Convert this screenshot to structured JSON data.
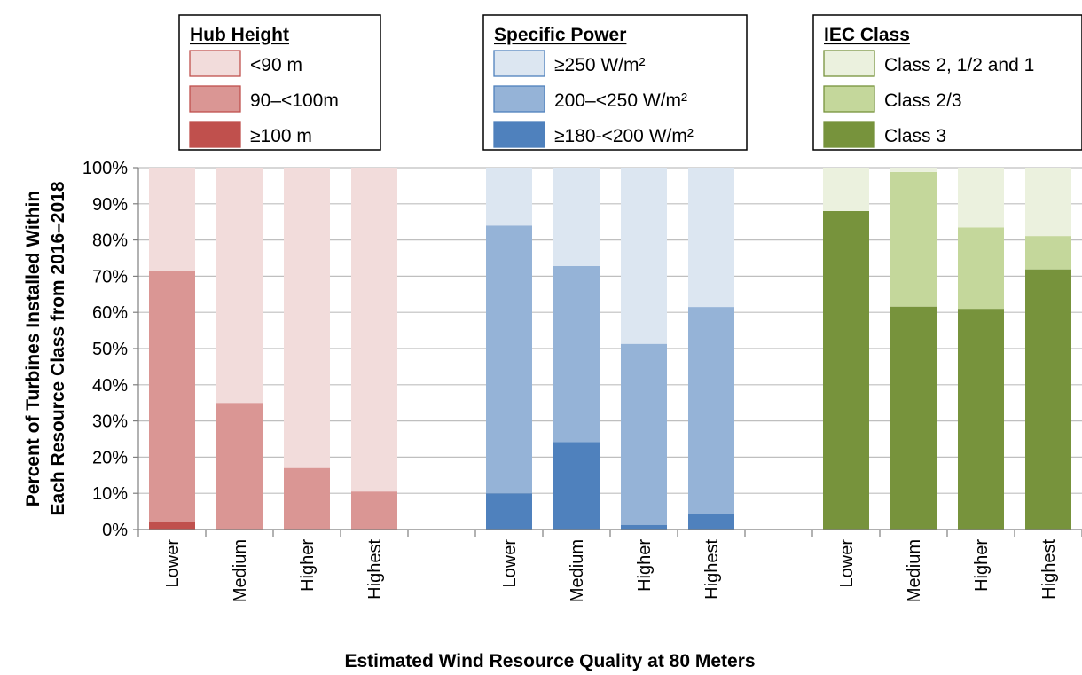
{
  "chart_data": {
    "type": "bar",
    "stacked": true,
    "ylabel_line1": "Percent of Turbines Installed Within",
    "ylabel_line2": "Each Resource Class from 2016–2018",
    "xlabel": "Estimated Wind Resource Quality at 80 Meters",
    "ylim": [
      0,
      100
    ],
    "yticks": [
      "0%",
      "10%",
      "20%",
      "30%",
      "40%",
      "50%",
      "60%",
      "70%",
      "80%",
      "90%",
      "100%"
    ],
    "categories": [
      "Lower",
      "Medium",
      "Higher",
      "Highest"
    ],
    "grid": true,
    "groups": [
      {
        "legend_title": "Hub Height",
        "legend_placement": "top-left",
        "series": [
          {
            "name": "<90 m",
            "color": "#f2dcdb",
            "values": [
              28.6,
              65.0,
              83.0,
              89.5
            ]
          },
          {
            "name": "90–<100m",
            "color": "#da9694",
            "values": [
              69.2,
              35.0,
              17.0,
              10.5
            ]
          },
          {
            "name": "≥100 m",
            "color": "#c0504d",
            "values": [
              2.2,
              0.0,
              0.0,
              0.0
            ]
          }
        ]
      },
      {
        "legend_title": "Specific Power",
        "legend_placement": "top-center",
        "series": [
          {
            "name": "≥250 W/m²",
            "color": "#dce6f1",
            "values": [
              16.0,
              27.2,
              48.7,
              38.5
            ]
          },
          {
            "name": "200–<250 W/m²",
            "color": "#95b3d7",
            "values": [
              74.0,
              48.6,
              50.0,
              57.3
            ]
          },
          {
            "name": "≥180-<200 W/m²",
            "color": "#4f81bd",
            "values": [
              10.0,
              24.2,
              1.3,
              4.2
            ]
          }
        ]
      },
      {
        "legend_title": "IEC Class",
        "legend_placement": "top-right",
        "series": [
          {
            "name": "Class 2, 1/2 and 1",
            "color": "#ebf1de",
            "values": [
              12.0,
              1.2,
              16.5,
              18.9
            ]
          },
          {
            "name": "Class 2/3",
            "color": "#c4d79b",
            "values": [
              0.0,
              37.2,
              22.5,
              9.2
            ]
          },
          {
            "name": "Class 3",
            "color": "#77933c",
            "values": [
              88.0,
              61.6,
              61.0,
              71.9
            ]
          }
        ]
      }
    ]
  }
}
